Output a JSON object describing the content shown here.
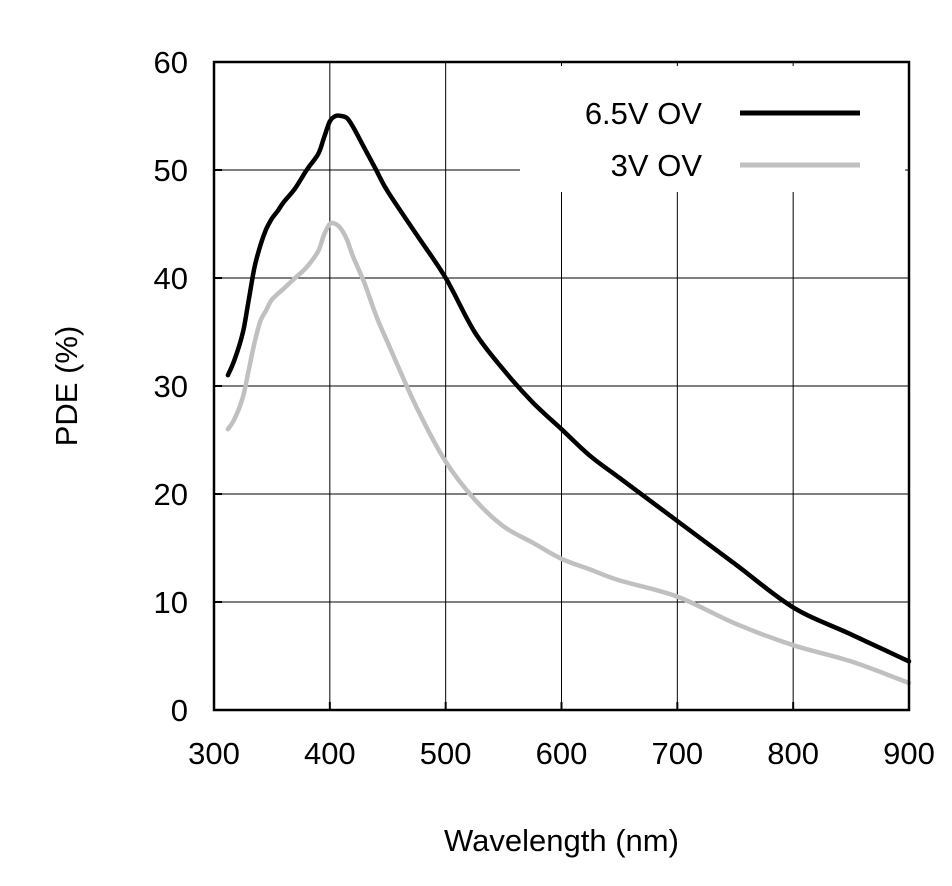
{
  "chart_data": {
    "type": "line",
    "title": "",
    "xlabel": "Wavelength (nm)",
    "ylabel": "PDE (%)",
    "xlim": [
      300,
      900
    ],
    "ylim": [
      0,
      60
    ],
    "xticks": [
      300,
      400,
      500,
      600,
      700,
      800,
      900
    ],
    "yticks": [
      0,
      10,
      20,
      30,
      40,
      50,
      60
    ],
    "xtick_labels": [
      "300",
      "400",
      "500",
      "600",
      "700",
      "800",
      "900"
    ],
    "ytick_labels": [
      "0",
      "10",
      "20",
      "30",
      "40",
      "50",
      "60"
    ],
    "grid": true,
    "legend_position": "top-right",
    "series": [
      {
        "name": "6.5V OV",
        "color": "#000000",
        "x": [
          312,
          318,
          325,
          330,
          335,
          340,
          345,
          350,
          355,
          360,
          370,
          380,
          390,
          395,
          400,
          405,
          410,
          415,
          420,
          430,
          440,
          450,
          475,
          500,
          525,
          550,
          575,
          600,
          625,
          650,
          700,
          750,
          800,
          850,
          900
        ],
        "y": [
          31.0,
          32.5,
          35.0,
          38.0,
          41.0,
          43.0,
          44.5,
          45.5,
          46.2,
          47.0,
          48.3,
          50.0,
          51.5,
          53.0,
          54.5,
          55.0,
          55.0,
          54.8,
          54.0,
          52.0,
          50.0,
          48.0,
          44.0,
          40.0,
          35.0,
          31.5,
          28.5,
          26.0,
          23.5,
          21.5,
          17.5,
          13.5,
          9.5,
          7.0,
          4.5
        ]
      },
      {
        "name": "3V OV",
        "color": "#c0c0c0",
        "x": [
          312,
          318,
          325,
          330,
          335,
          340,
          345,
          350,
          360,
          370,
          380,
          390,
          395,
          400,
          405,
          410,
          415,
          420,
          430,
          440,
          450,
          475,
          500,
          525,
          550,
          575,
          600,
          625,
          650,
          700,
          750,
          800,
          850,
          900
        ],
        "y": [
          26.0,
          27.0,
          29.0,
          31.5,
          34.0,
          36.0,
          37.0,
          38.0,
          39.0,
          40.0,
          41.0,
          42.5,
          44.0,
          45.0,
          45.0,
          44.5,
          43.5,
          42.0,
          39.5,
          36.5,
          34.0,
          28.0,
          23.0,
          19.5,
          17.0,
          15.5,
          14.0,
          13.0,
          12.0,
          10.5,
          8.0,
          6.0,
          4.5,
          2.5
        ]
      }
    ]
  }
}
